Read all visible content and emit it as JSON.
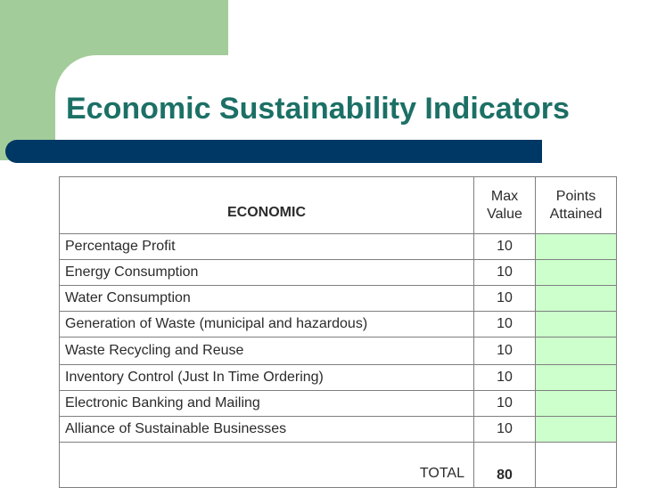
{
  "slide": {
    "title": "Economic Sustainability Indicators"
  },
  "table": {
    "header": {
      "category": "ECONOMIC",
      "max_value_line1": "Max",
      "max_value_line2": "Value",
      "points_line1": "Points",
      "points_line2": "Attained"
    },
    "rows": [
      {
        "indicator": "Percentage Profit",
        "max_value": "10",
        "points": ""
      },
      {
        "indicator": "Energy Consumption",
        "max_value": "10",
        "points": ""
      },
      {
        "indicator": "Water Consumption",
        "max_value": "10",
        "points": ""
      },
      {
        "indicator": "Generation of Waste (municipal and hazardous)",
        "max_value": "10",
        "points": ""
      },
      {
        "indicator": "Waste Recycling and Reuse",
        "max_value": "10",
        "points": ""
      },
      {
        "indicator": "Inventory Control (Just In Time Ordering)",
        "max_value": "10",
        "points": ""
      },
      {
        "indicator": "Electronic Banking and Mailing",
        "max_value": "10",
        "points": ""
      },
      {
        "indicator": "Alliance of Sustainable Businesses",
        "max_value": "10",
        "points": ""
      }
    ],
    "total": {
      "label": "TOTAL",
      "max_value": "80",
      "points": ""
    }
  },
  "colors": {
    "title": "#1c7065",
    "title_bar": "#003865",
    "corner_block": "#a3cc9b",
    "points_fill": "#ccffcc",
    "header_text": "#1a1a6e"
  }
}
